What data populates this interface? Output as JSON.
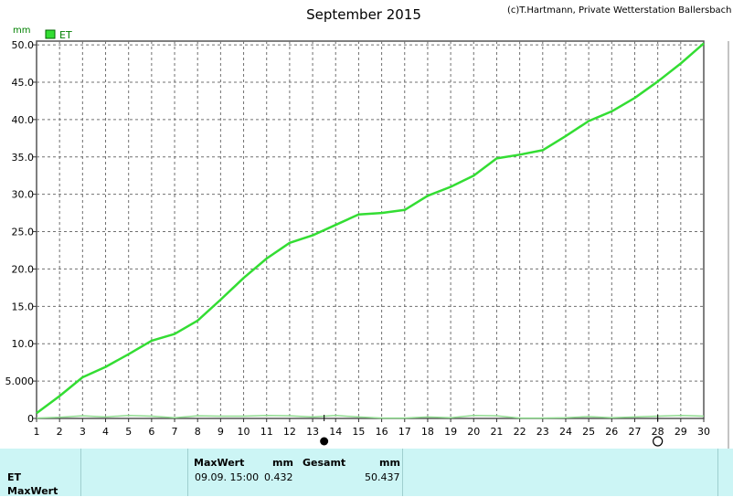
{
  "chart_data": {
    "type": "line",
    "title": "September 2015",
    "copyright": "(c)T.Hartmann, Private Wetterstation Ballersbach",
    "ylabel": "mm",
    "legend": {
      "label": "ET",
      "color": "#33dd33",
      "placement": "top-left"
    },
    "ylim": [
      0,
      50.5
    ],
    "yticks": [
      "0",
      "5.000",
      "10.0",
      "15.0",
      "20.0",
      "25.0",
      "30.0",
      "35.0",
      "40.0",
      "45.0",
      "50.0"
    ],
    "ytick_values": [
      0,
      5,
      10,
      15,
      20,
      25,
      30,
      35,
      40,
      45,
      50
    ],
    "xlim": [
      1,
      30
    ],
    "x": [
      1,
      2,
      3,
      4,
      5,
      6,
      7,
      8,
      9,
      10,
      11,
      12,
      13,
      14,
      15,
      16,
      17,
      18,
      19,
      20,
      21,
      22,
      23,
      24,
      25,
      26,
      27,
      28,
      29,
      30
    ],
    "grid": true,
    "series": [
      {
        "name": "ET",
        "color": "#33dd33",
        "values": [
          0.7,
          3.0,
          5.5,
          6.9,
          8.6,
          10.4,
          11.3,
          13.1,
          15.9,
          18.8,
          21.4,
          23.5,
          24.5,
          25.9,
          27.3,
          27.5,
          27.9,
          29.8,
          31.0,
          32.5,
          34.8,
          35.3,
          35.9,
          37.8,
          39.8,
          41.1,
          42.9,
          45.1,
          47.5,
          50.2
        ]
      },
      {
        "name": "",
        "color": "#90dd90",
        "values": [
          0.05,
          0.15,
          0.35,
          0.2,
          0.4,
          0.3,
          0.1,
          0.35,
          0.3,
          0.3,
          0.4,
          0.35,
          0.2,
          0.4,
          0.2,
          0.05,
          0.05,
          0.2,
          0.1,
          0.4,
          0.35,
          0.05,
          0.05,
          0.1,
          0.25,
          0.1,
          0.2,
          0.3,
          0.4,
          0.3
        ]
      }
    ],
    "markers": [
      {
        "x": 13.5,
        "type": "filled-circle"
      },
      {
        "x": 28.0,
        "type": "open-circle"
      }
    ]
  },
  "stats": {
    "row1_label": "ET",
    "row2_label": "MaxWert",
    "max_header": "MaxWert",
    "max_unit": "mm",
    "max_time": "09.09.  15:00",
    "max_value": "0.432",
    "total_header": "Gesamt",
    "total_unit": "mm",
    "total_value": "50.437"
  }
}
